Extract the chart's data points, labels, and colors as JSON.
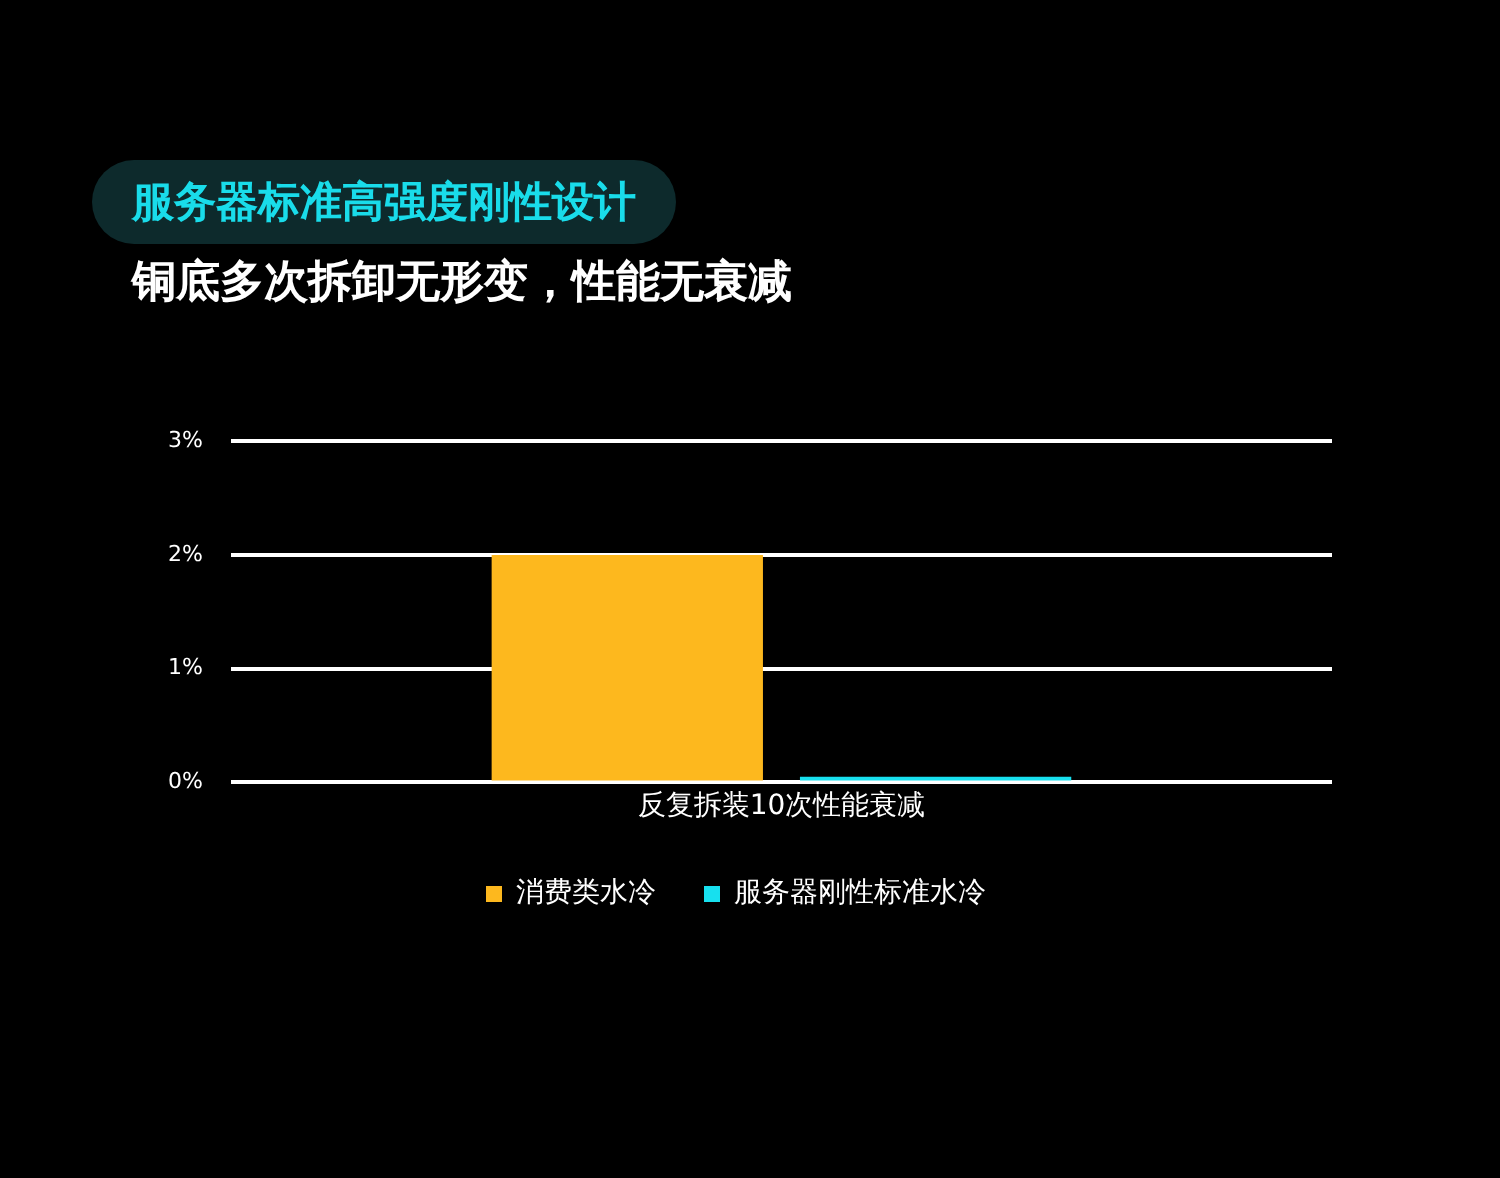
{
  "chart_data": {
    "type": "bar",
    "title": "服务器标准高强度刚性设计",
    "subtitle": "铜底多次拆卸无形变，性能无衰减",
    "categories": [
      "反复拆装10次性能衰减"
    ],
    "series": [
      {
        "name": "消费类水冷",
        "color": "#fdb81e",
        "values": [
          2
        ]
      },
      {
        "name": "服务器刚性标准水冷",
        "color": "#17e0ef",
        "values": [
          0.05
        ]
      }
    ],
    "ylim": [
      0,
      3
    ],
    "yticks": [
      {
        "value": 0,
        "label": "0%"
      },
      {
        "value": 1,
        "label": "1%"
      },
      {
        "value": 2,
        "label": "2%"
      },
      {
        "value": 3,
        "label": "3%"
      }
    ],
    "grid": "y",
    "legend": "bottom"
  }
}
